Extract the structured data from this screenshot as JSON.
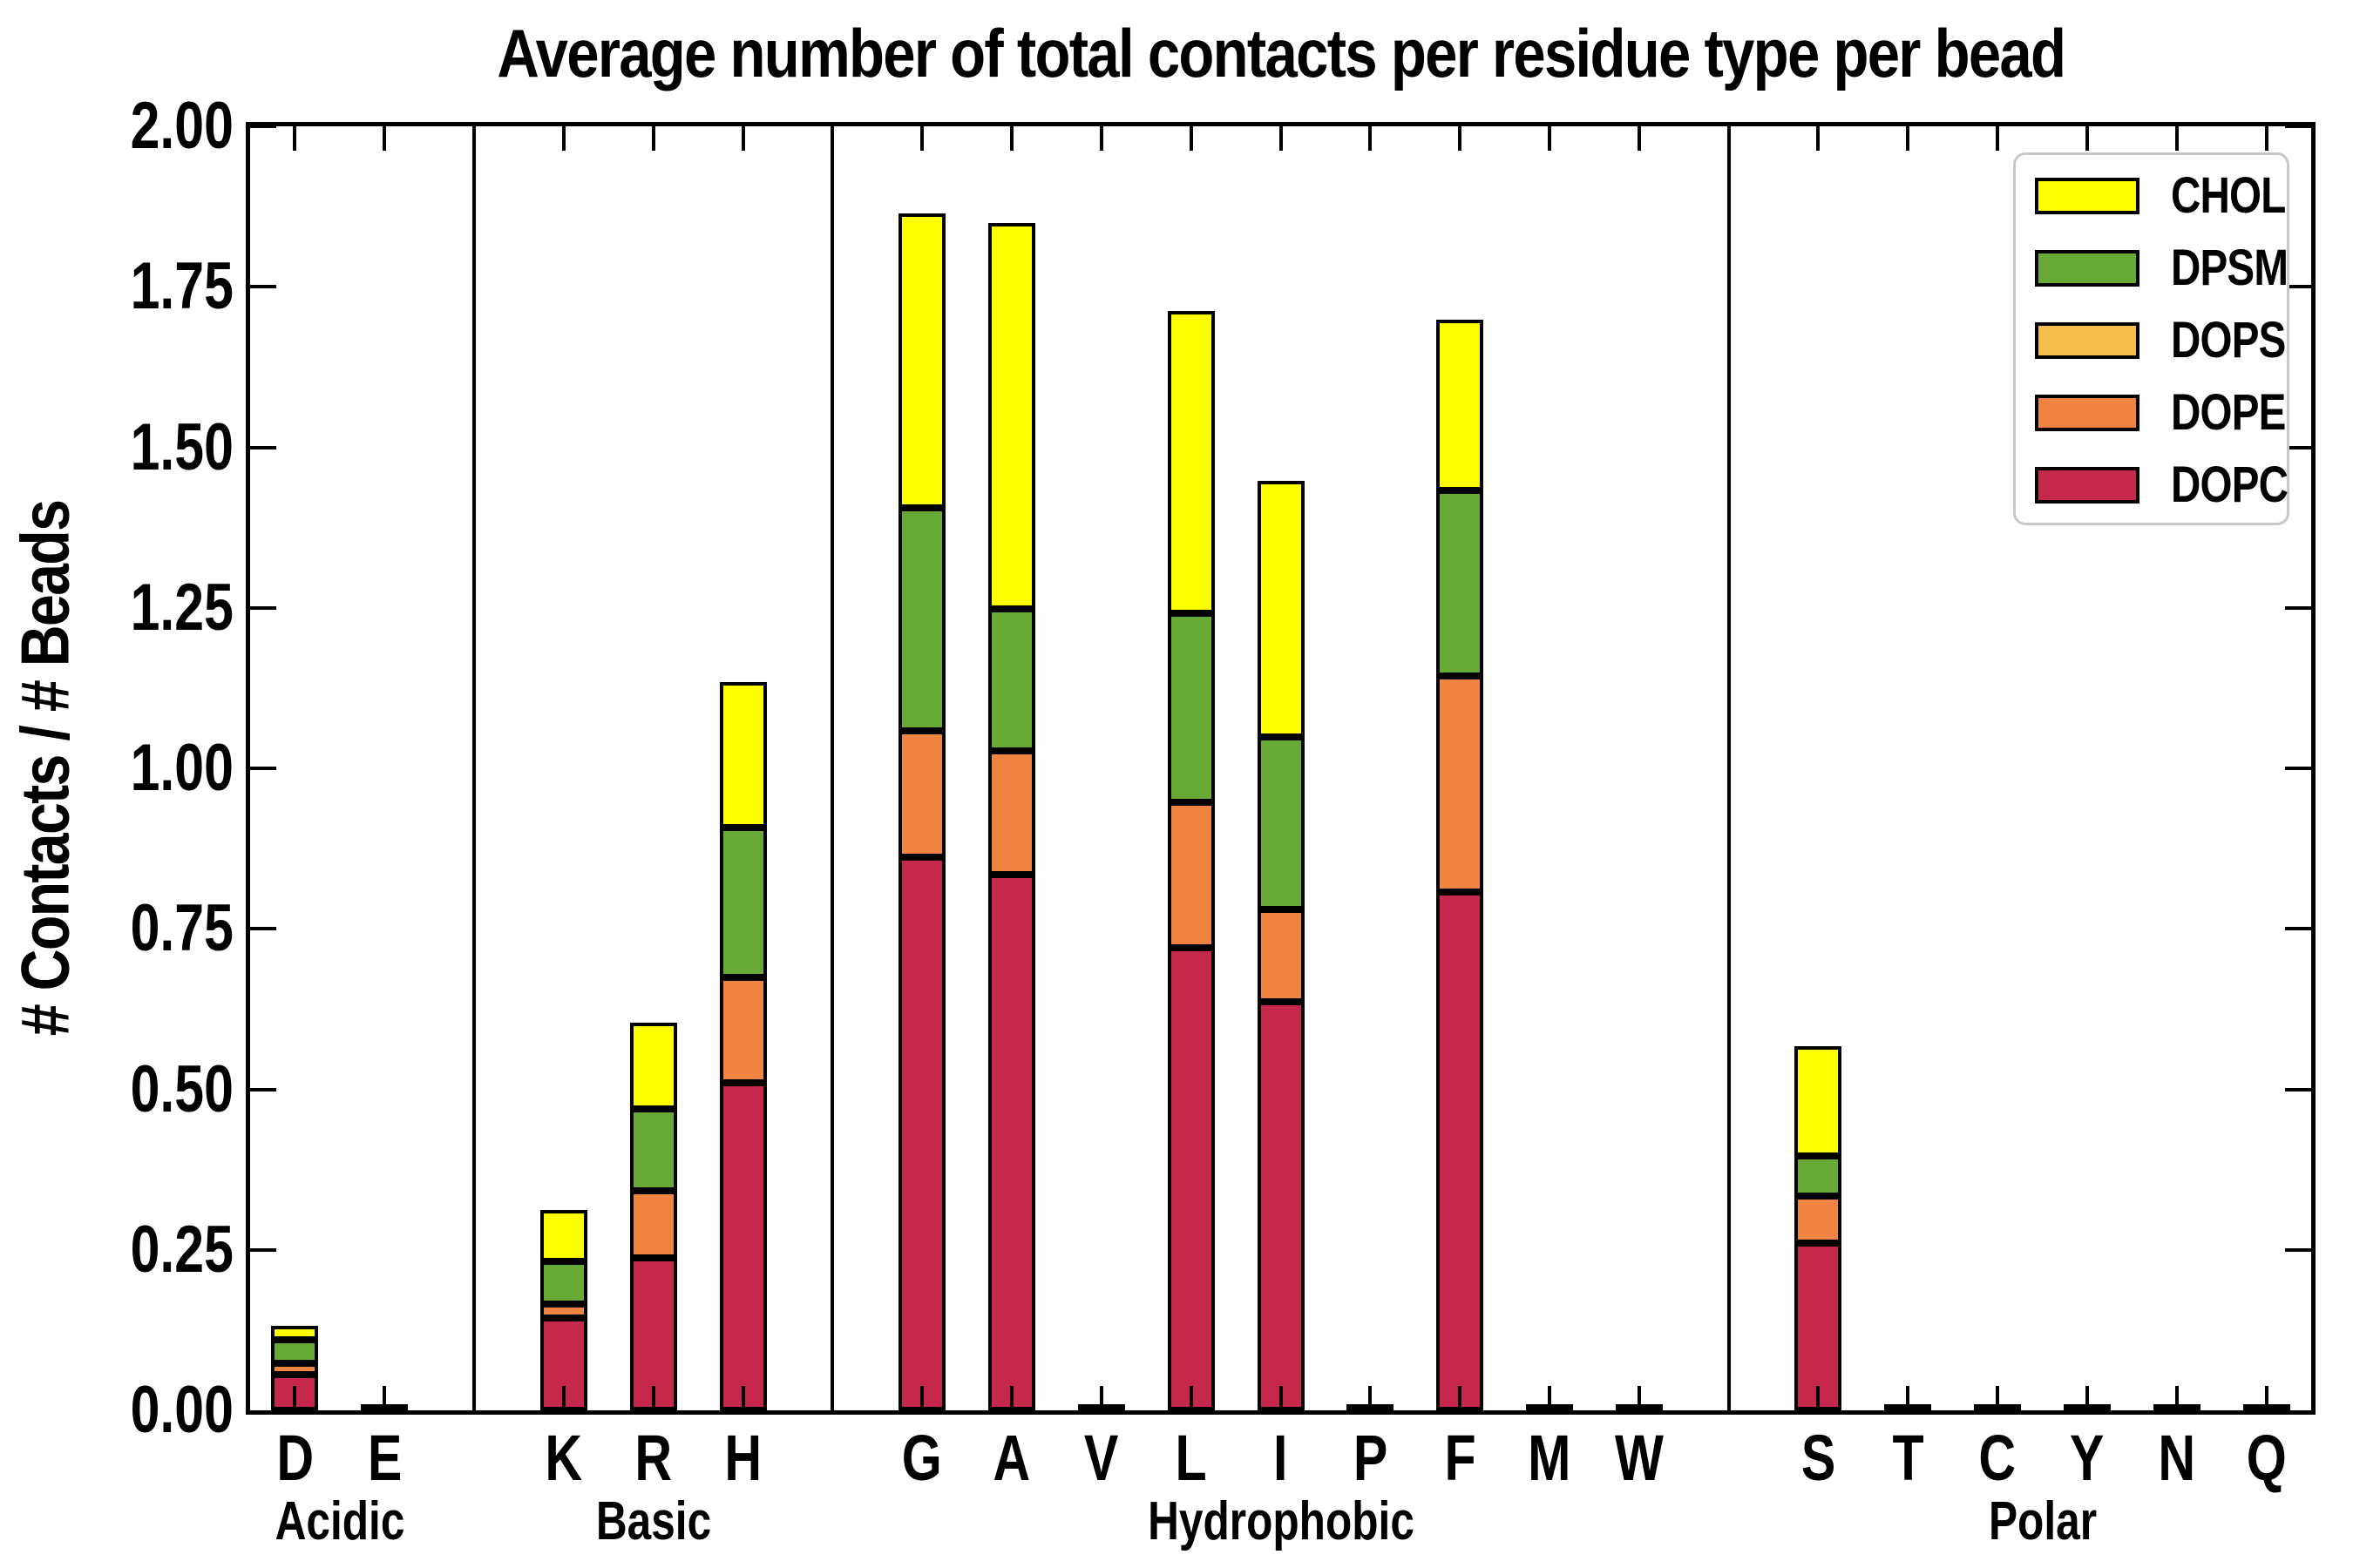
{
  "figure": {
    "title": "Average number of total contacts per residue type per bead",
    "ylabel": "# Contacts / # Beads",
    "background_color": "#FFFFFF"
  },
  "chart_data": {
    "type": "bar",
    "subtype": "stacked_vertical_bars",
    "title": "Average number of total contacts per residue type per bead",
    "xlabel": "",
    "ylabel": "# Contacts / # Beads",
    "ylim": [
      0,
      2.0
    ],
    "ytick_step": 0.25,
    "ytick_labels": [
      "0.00",
      "0.25",
      "0.50",
      "0.75",
      "1.00",
      "1.25",
      "1.50",
      "1.75",
      "2.00"
    ],
    "grid": false,
    "legend_position": "upper right",
    "legend_order_top_to_bottom": [
      "CHOL",
      "DPSM",
      "DOPS",
      "DOPE",
      "DOPC"
    ],
    "colors": {
      "CHOL": "#FFFF00",
      "DPSM": "#69AA37",
      "DOPS": "#F5BE4B",
      "DOPE": "#EE8440",
      "DOPC": "#C5284B",
      "bar_edge": "#000000",
      "separator": "#000000",
      "legend_border": "#C8C8C8"
    },
    "groups": [
      {
        "label": "Acidic",
        "categories": [
          "D",
          "E"
        ]
      },
      {
        "label": "Basic",
        "categories": [
          "K",
          "R",
          "H"
        ]
      },
      {
        "label": "Hydrophobic",
        "categories": [
          "G",
          "A",
          "V",
          "L",
          "I",
          "P",
          "F",
          "M",
          "W"
        ]
      },
      {
        "label": "Polar",
        "categories": [
          "S",
          "T",
          "C",
          "Y",
          "N",
          "Q"
        ]
      }
    ],
    "categories": [
      "D",
      "E",
      "K",
      "R",
      "H",
      "G",
      "A",
      "V",
      "L",
      "I",
      "P",
      "F",
      "M",
      "W",
      "S",
      "T",
      "C",
      "Y",
      "N",
      "Q"
    ],
    "series": [
      {
        "name": "DOPC",
        "values": [
          0.056,
          0,
          0.144,
          0.237,
          0.51,
          0.861,
          0.835,
          0,
          0.721,
          0.637,
          0,
          0.808,
          0,
          0,
          0.261,
          0,
          0,
          0,
          0,
          0
        ]
      },
      {
        "name": "DOPE",
        "values": [
          0.018,
          0,
          0.022,
          0.104,
          0.164,
          0.197,
          0.192,
          0,
          0.226,
          0.144,
          0,
          0.336,
          0,
          0,
          0.073,
          0,
          0,
          0,
          0,
          0
        ]
      },
      {
        "name": "DOPS",
        "values": [
          0,
          0,
          0,
          0,
          0,
          0,
          0,
          0,
          0,
          0,
          0,
          0,
          0,
          0,
          0,
          0,
          0,
          0,
          0,
          0
        ]
      },
      {
        "name": "DPSM",
        "values": [
          0.036,
          0,
          0.066,
          0.128,
          0.233,
          0.347,
          0.221,
          0,
          0.295,
          0.268,
          0,
          0.289,
          0,
          0,
          0.063,
          0,
          0,
          0,
          0,
          0
        ]
      },
      {
        "name": "CHOL",
        "values": [
          0.022,
          0,
          0.08,
          0.135,
          0.227,
          0.459,
          0.601,
          0,
          0.471,
          0.399,
          0,
          0.266,
          0,
          0,
          0.171,
          0,
          0,
          0,
          0,
          0
        ]
      }
    ],
    "totals": {
      "D": 0.132,
      "E": 0,
      "K": 0.312,
      "R": 0.604,
      "H": 1.134,
      "G": 1.864,
      "A": 1.849,
      "V": 0,
      "L": 1.713,
      "I": 1.448,
      "P": 0,
      "F": 1.699,
      "M": 0,
      "W": 0,
      "S": 0.568,
      "T": 0,
      "C": 0,
      "Y": 0,
      "N": 0,
      "Q": 0
    }
  }
}
